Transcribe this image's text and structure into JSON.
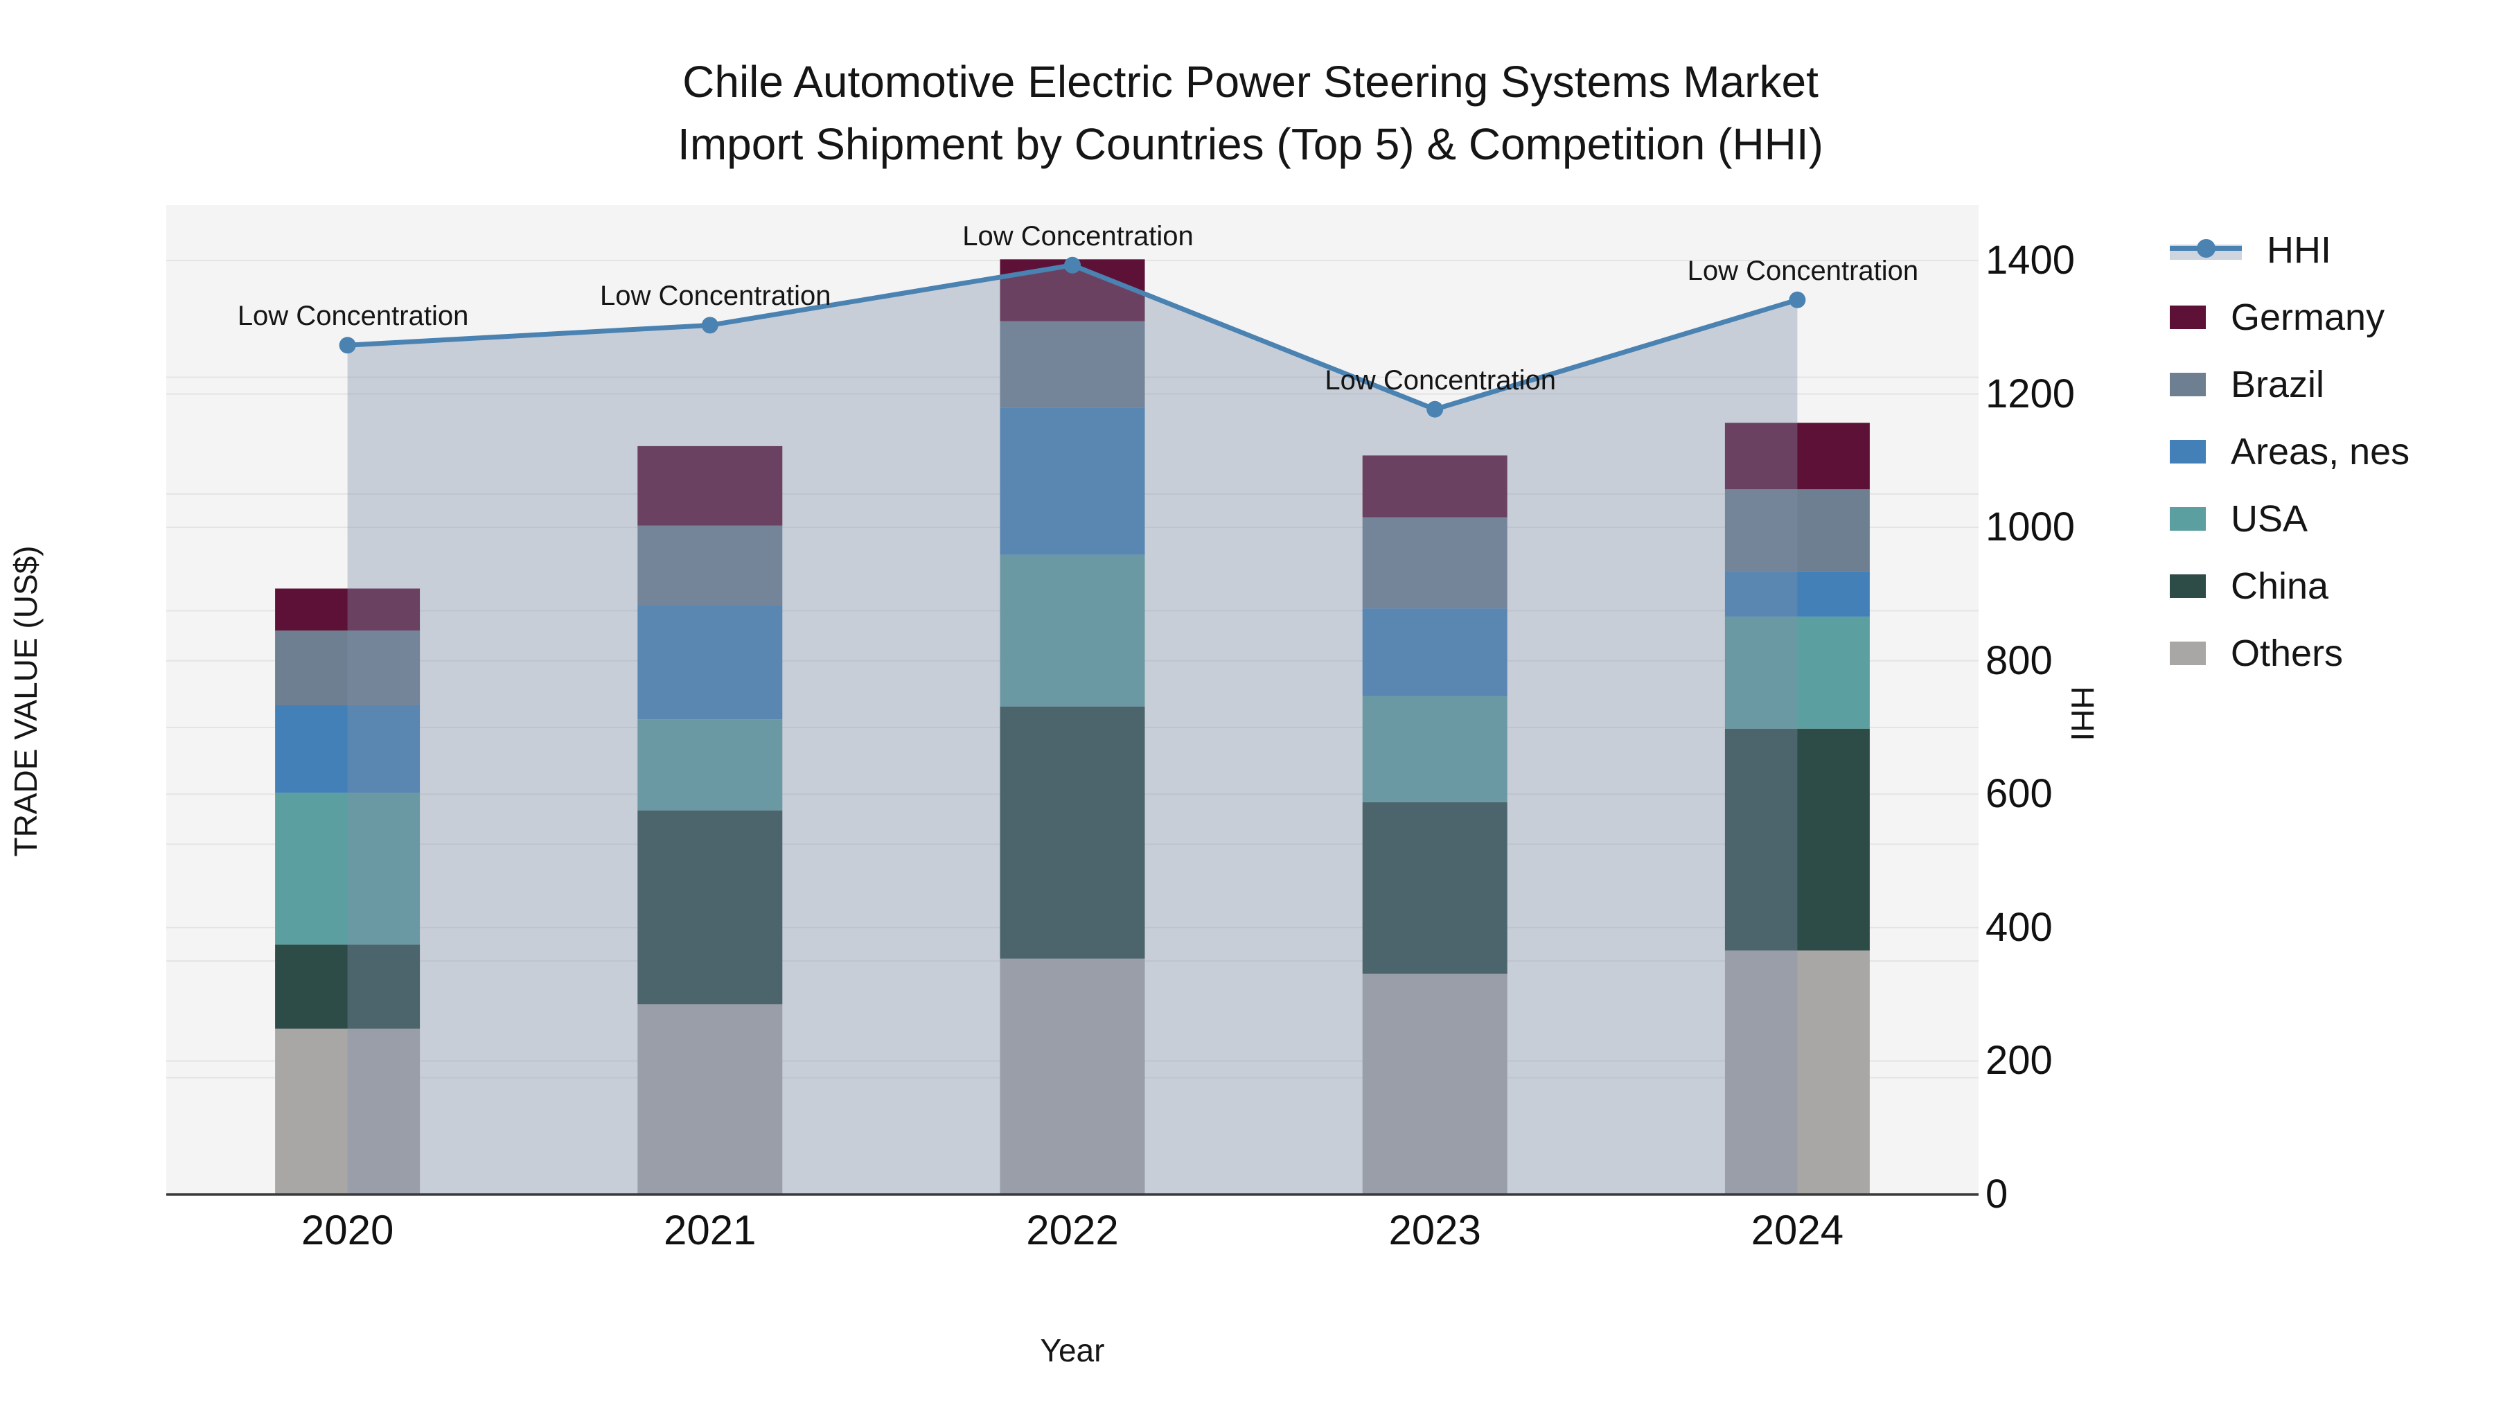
{
  "title": {
    "line1": "Chile Automotive Electric Power Steering Systems Market",
    "line2": "Import Shipment by Countries (Top 5) & Competition (HHI)"
  },
  "axes": {
    "x": {
      "title": "Year"
    },
    "y_left": {
      "title": "TRADE VALUE (US$)"
    },
    "y_right": {
      "title": "HHI"
    }
  },
  "legend": {
    "items": [
      {
        "label": "HHI",
        "type": "line"
      },
      {
        "label": "Germany",
        "type": "box",
        "color": "#5e1136"
      },
      {
        "label": "Brazil",
        "type": "box",
        "color": "#6d7f90"
      },
      {
        "label": "Areas, nes",
        "type": "box",
        "color": "#4380b7"
      },
      {
        "label": "USA",
        "type": "box",
        "color": "#5c9fa0"
      },
      {
        "label": "China",
        "type": "box",
        "color": "#2d4b47"
      },
      {
        "label": "Others",
        "type": "box",
        "color": "#a8a7a6"
      }
    ]
  },
  "chart_data": {
    "type": "bar",
    "subtype": "stacked-bar-with-line",
    "title": "Chile Automotive Electric Power Steering Systems Market Import Shipment by Countries (Top 5) & Competition (HHI)",
    "categories": [
      "2020",
      "2021",
      "2022",
      "2023",
      "2024"
    ],
    "xlabel": "Year",
    "ylabel_left": "TRADE VALUE (US$)",
    "ylabel_right": "HHI",
    "y_left_range": [
      0,
      8475000
    ],
    "y_right_range": [
      0,
      1400
    ],
    "y_left_ticks": [
      {
        "value": 0,
        "label": "0"
      },
      {
        "value": 1000000,
        "label": "1M"
      },
      {
        "value": 2000000,
        "label": "2M"
      },
      {
        "value": 3000000,
        "label": "3M"
      },
      {
        "value": 4000000,
        "label": "4M"
      },
      {
        "value": 5000000,
        "label": "5M"
      },
      {
        "value": 6000000,
        "label": "6M"
      },
      {
        "value": 7000000,
        "label": "7M"
      },
      {
        "value": 8000000,
        "label": "8M"
      }
    ],
    "y_right_ticks": [
      {
        "value": 0,
        "label": "0"
      },
      {
        "value": 200,
        "label": "200"
      },
      {
        "value": 400,
        "label": "400"
      },
      {
        "value": 600,
        "label": "600"
      },
      {
        "value": 800,
        "label": "800"
      },
      {
        "value": 1000,
        "label": "1000"
      },
      {
        "value": 1200,
        "label": "1200"
      },
      {
        "value": 1400,
        "label": "1400"
      }
    ],
    "grid": true,
    "legend_position": "right",
    "series": [
      {
        "name": "Others",
        "color": "#a8a7a6",
        "values": [
          1420000,
          1630000,
          2020000,
          1890000,
          2090000
        ]
      },
      {
        "name": "China",
        "color": "#2d4b47",
        "values": [
          720000,
          1660000,
          2160000,
          1470000,
          1900000
        ]
      },
      {
        "name": "USA",
        "color": "#5c9fa0",
        "values": [
          1300000,
          780000,
          1300000,
          910000,
          960000
        ]
      },
      {
        "name": "Areas, nes",
        "color": "#4380b7",
        "values": [
          750000,
          980000,
          1260000,
          750000,
          390000
        ]
      },
      {
        "name": "Brazil",
        "color": "#6d7f90",
        "values": [
          640000,
          680000,
          740000,
          780000,
          700000
        ]
      },
      {
        "name": "Germany",
        "color": "#5e1136",
        "values": [
          360000,
          680000,
          530000,
          530000,
          570000
        ]
      }
    ],
    "line_series": {
      "name": "HHI",
      "axis": "right",
      "color": "#4a82b2",
      "area_fill": "rgba(130,145,170,0.38)",
      "values": [
        1273,
        1303,
        1393,
        1177,
        1341
      ]
    },
    "annotations": [
      {
        "category": "2020",
        "label": "Low Concentration"
      },
      {
        "category": "2021",
        "label": "Low Concentration"
      },
      {
        "category": "2022",
        "label": "Low Concentration"
      },
      {
        "category": "2023",
        "label": "Low Concentration"
      },
      {
        "category": "2024",
        "label": "Low Concentration"
      }
    ],
    "colors": {
      "plot_background": "#f4f4f4",
      "gridline": "#e4e4e4",
      "axis_line": "#3a3a3a",
      "text": "#151515"
    }
  }
}
